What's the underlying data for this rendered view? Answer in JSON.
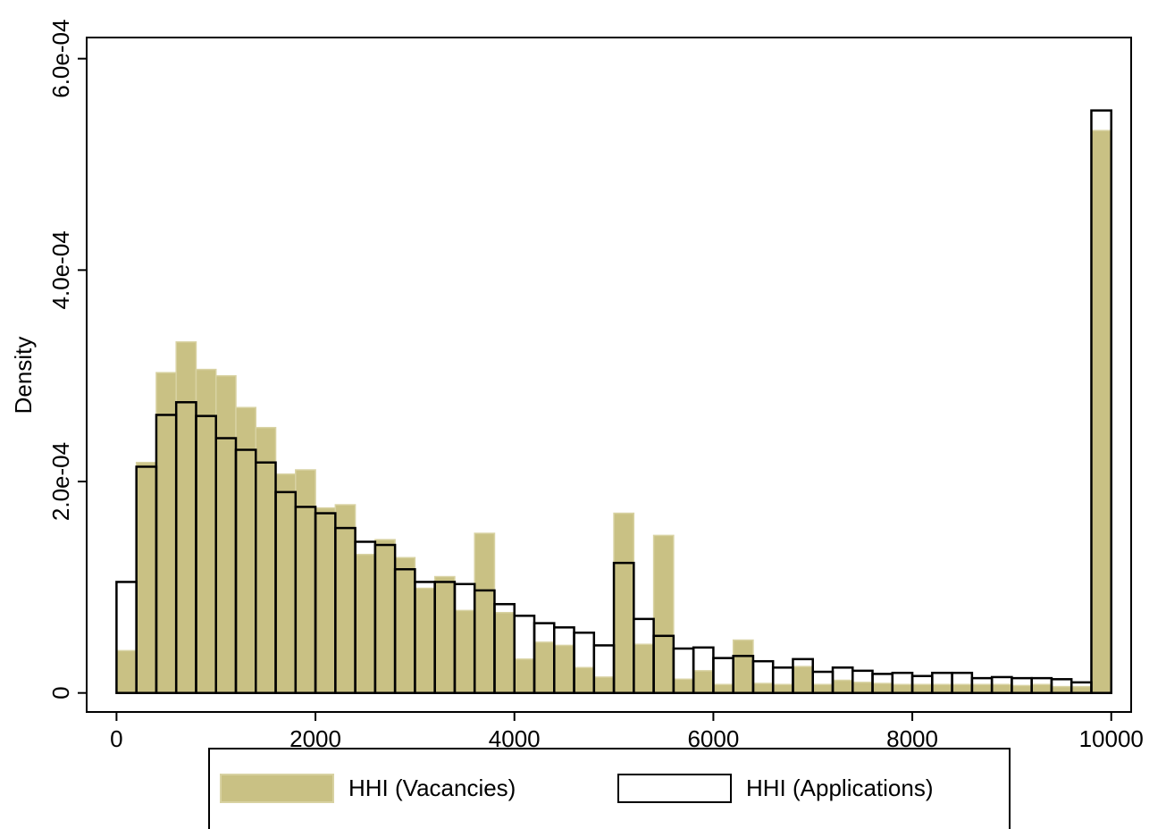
{
  "chart_data": {
    "type": "histogram",
    "y_label": "Density",
    "bins": [
      0,
      200,
      400,
      600,
      800,
      1000,
      1200,
      1400,
      1600,
      1800,
      2000,
      2200,
      2400,
      2600,
      2800,
      3000,
      3200,
      3400,
      3600,
      3800,
      4000,
      4200,
      4400,
      4600,
      4800,
      5000,
      5200,
      5400,
      5600,
      5800,
      6000,
      6200,
      6400,
      6600,
      6800,
      7000,
      7200,
      7400,
      7600,
      7800,
      8000,
      8200,
      8400,
      8600,
      8800,
      9000,
      9200,
      9400,
      9600,
      9800,
      10000
    ],
    "series": [
      {
        "name": "HHI (Vacancies)",
        "color": "#c9c184",
        "values": [
          4e-05,
          0.000218,
          0.000303,
          0.000332,
          0.000306,
          0.0003,
          0.00027,
          0.000251,
          0.000207,
          0.000211,
          0.000175,
          0.000178,
          0.000131,
          0.000145,
          0.000128,
          9.9e-05,
          0.00011,
          7.8e-05,
          0.000151,
          7.6e-05,
          3.2e-05,
          4.8e-05,
          4.5e-05,
          2.4e-05,
          1.5e-05,
          0.00017,
          4.6e-05,
          0.000149,
          1.3e-05,
          2.1e-05,
          8e-06,
          5e-05,
          9e-06,
          8e-06,
          2.5e-05,
          8e-06,
          1.2e-05,
          1e-05,
          9e-06,
          8e-06,
          8e-06,
          8e-06,
          8e-06,
          8e-06,
          8e-06,
          7e-06,
          8e-06,
          6e-06,
          6e-06,
          0.000532
        ]
      },
      {
        "name": "HHI (Applications)",
        "color": "#000000",
        "values": [
          0.000105,
          0.000214,
          0.000263,
          0.000275,
          0.000262,
          0.000241,
          0.00023,
          0.000218,
          0.00019,
          0.000176,
          0.00017,
          0.000156,
          0.000143,
          0.00014,
          0.000117,
          0.000105,
          0.000105,
          0.000103,
          9.7e-05,
          8.4e-05,
          7.3e-05,
          6.6e-05,
          6.2e-05,
          5.7e-05,
          4.5e-05,
          0.000123,
          7e-05,
          5.4e-05,
          4.2e-05,
          4.3e-05,
          3.3e-05,
          3.5e-05,
          3e-05,
          2.4e-05,
          3.2e-05,
          2e-05,
          2.4e-05,
          2.1e-05,
          1.8e-05,
          1.9e-05,
          1.6e-05,
          1.9e-05,
          1.9e-05,
          1.4e-05,
          1.5e-05,
          1.4e-05,
          1.4e-05,
          1.3e-05,
          1e-05,
          0.000551
        ]
      }
    ],
    "xlim": [
      -300,
      10200
    ],
    "xticks": [
      0,
      2000,
      4000,
      6000,
      8000,
      10000
    ],
    "ylim": [
      -1.8e-05,
      0.00062
    ],
    "yticks": [
      0,
      {
        "value": 0.0002,
        "label": "2.0e-04"
      },
      {
        "value": 0.0004,
        "label": "4.0e-04"
      },
      {
        "value": 0.0006,
        "label": "6.0e-04"
      }
    ],
    "legend": "bottom"
  }
}
